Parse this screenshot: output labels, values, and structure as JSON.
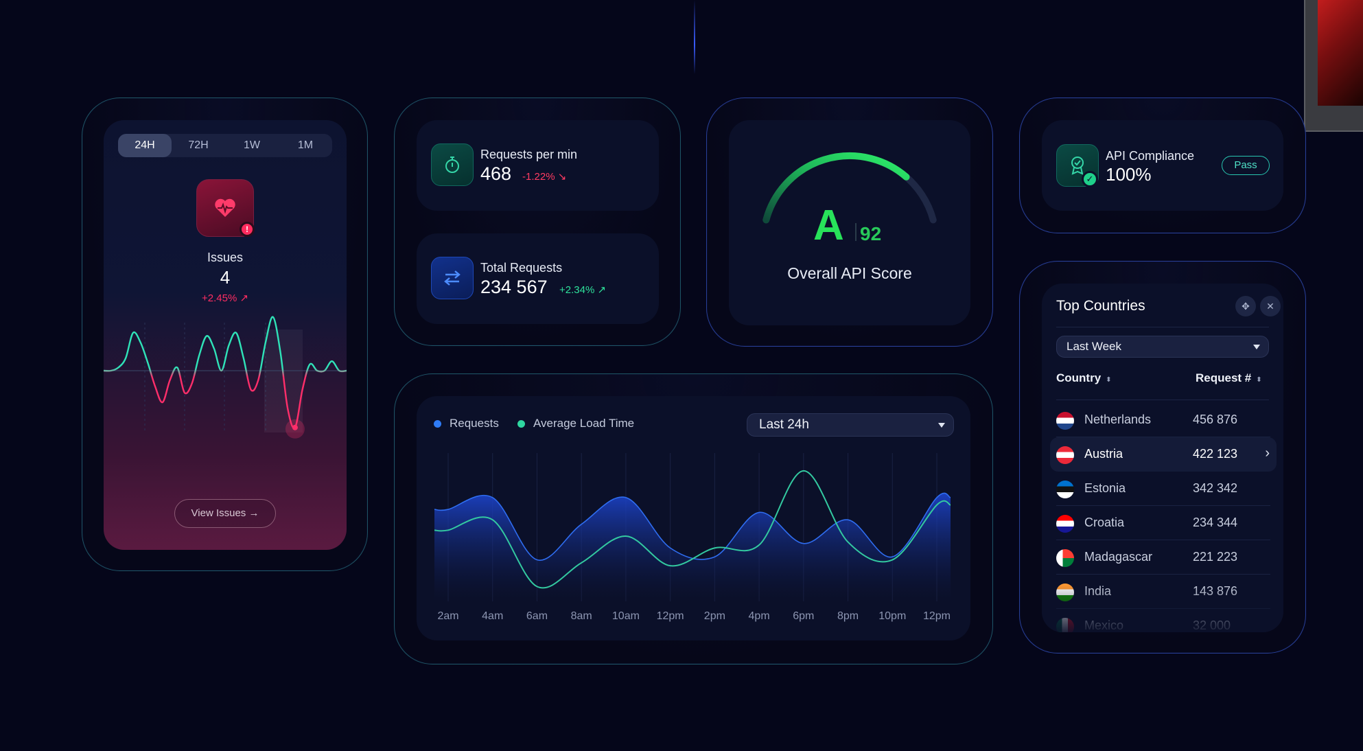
{
  "issues": {
    "tabs": [
      "24H",
      "72H",
      "1W",
      "1M"
    ],
    "active_tab": "24H",
    "badge": "!",
    "label": "Issues",
    "count": "4",
    "change": "+2.45% ↗",
    "button": "View Issues →",
    "icon": "heart-pulse-icon"
  },
  "requests_per_min": {
    "label": "Requests per min",
    "value": "468",
    "change": "-1.22% ↘",
    "icon": "stopwatch-icon"
  },
  "total_requests": {
    "label": "Total Requests",
    "value": "234 567",
    "change": "+2.34% ↗",
    "icon": "swap-arrows-icon"
  },
  "score": {
    "grade": "A",
    "value": "92",
    "label": "Overall API Score",
    "gauge_fraction": 0.92
  },
  "compliance": {
    "label": "API Compliance",
    "value": "100%",
    "badge": "Pass",
    "icon": "award-badge-icon",
    "check": "✓"
  },
  "countries": {
    "title": "Top Countries",
    "move_icon": "✥",
    "close_icon": "✕",
    "period": "Last Week",
    "col_country": "Country",
    "col_requests": "Request #",
    "sort_glyph": "⬍",
    "chevron": "›",
    "rows": [
      {
        "name": "Netherlands",
        "value": "456 876",
        "highlight": false
      },
      {
        "name": "Austria",
        "value": "422 123",
        "highlight": true
      },
      {
        "name": "Estonia",
        "value": "342 342",
        "highlight": false
      },
      {
        "name": "Croatia",
        "value": "234 344",
        "highlight": false
      },
      {
        "name": "Madagascar",
        "value": "221 223",
        "highlight": false
      },
      {
        "name": "India",
        "value": "143 876",
        "highlight": false
      },
      {
        "name": "Mexico",
        "value": "32 000",
        "highlight": false
      }
    ]
  },
  "traffic": {
    "period": "Last 24h",
    "legend": [
      {
        "label": "Requests",
        "color": "#2f7cf6"
      },
      {
        "label": "Average Load Time",
        "color": "#2fd6a0"
      }
    ]
  },
  "chart_data": [
    {
      "type": "area",
      "categories": [
        "2am",
        "4am",
        "6am",
        "8am",
        "10am",
        "12pm",
        "2pm",
        "4pm",
        "6pm",
        "8pm",
        "10pm",
        "12pm"
      ],
      "series": [
        {
          "name": "Requests",
          "values": [
            62,
            70,
            28,
            52,
            70,
            36,
            30,
            60,
            39,
            55,
            30,
            70
          ]
        },
        {
          "name": "Average Load Time",
          "values": [
            48,
            55,
            10,
            26,
            44,
            24,
            36,
            38,
            88,
            40,
            28,
            65
          ]
        }
      ],
      "ylim": [
        0,
        100
      ]
    },
    {
      "type": "line",
      "series": [
        {
          "name": "",
          "values": [
            0,
            0,
            2,
            8,
            24,
            18,
            5,
            -10,
            -20,
            -6,
            2,
            -14,
            -8,
            10,
            22,
            14,
            0,
            16,
            24,
            8,
            -12,
            -6,
            18,
            34,
            12,
            -24,
            -36,
            -12,
            4,
            0,
            0,
            6,
            0,
            0
          ]
        }
      ],
      "ylim": [
        -40,
        40
      ]
    }
  ]
}
